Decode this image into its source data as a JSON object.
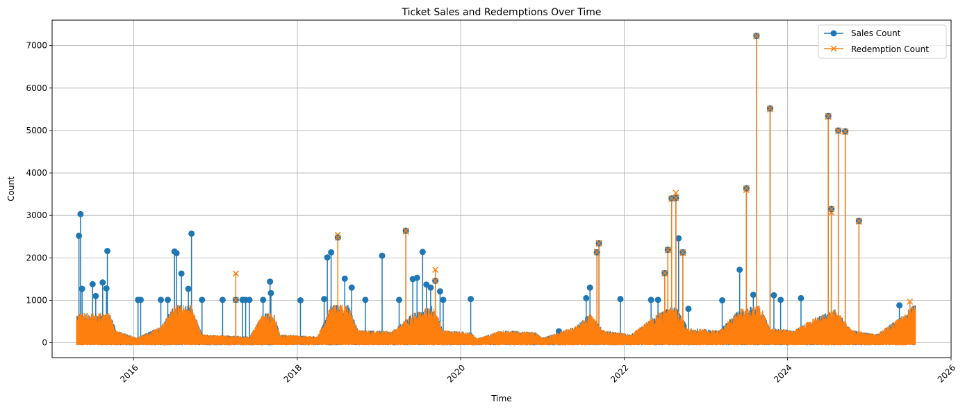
{
  "chart_data": {
    "type": "line",
    "title": "Ticket Sales and Redemptions Over Time",
    "xlabel": "Time",
    "ylabel": "Count",
    "x_axis_type": "date",
    "xlim": [
      "2015-01-01",
      "2026-01-01"
    ],
    "ylim": [
      -350,
      7600
    ],
    "xticks": [
      "2016",
      "2018",
      "2020",
      "2022",
      "2024",
      "2026"
    ],
    "yticks": [
      0,
      1000,
      2000,
      3000,
      4000,
      5000,
      6000,
      7000
    ],
    "grid": true,
    "legend": "top-right",
    "colors": {
      "sales": "#1f77b4",
      "redemption": "#ff7f0e"
    },
    "series": [
      {
        "name": "Sales Count",
        "marker": "circle",
        "spikes": [
          [
            "2015-05-01",
            2520
          ],
          [
            "2015-05-08",
            3030
          ],
          [
            "2015-05-15",
            1270
          ],
          [
            "2015-07-01",
            1380
          ],
          [
            "2015-07-15",
            1100
          ],
          [
            "2015-08-15",
            1420
          ],
          [
            "2015-09-01",
            1280
          ],
          [
            "2015-09-05",
            2160
          ],
          [
            "2016-01-20",
            1010
          ],
          [
            "2016-02-01",
            1010
          ],
          [
            "2016-05-01",
            1010
          ],
          [
            "2016-06-01",
            1010
          ],
          [
            "2016-07-01",
            2150
          ],
          [
            "2016-07-10",
            2110
          ],
          [
            "2016-08-01",
            1630
          ],
          [
            "2016-09-01",
            1270
          ],
          [
            "2016-09-15",
            2570
          ],
          [
            "2016-11-01",
            1010
          ],
          [
            "2017-02-01",
            1010
          ],
          [
            "2017-04-01",
            1010
          ],
          [
            "2017-05-01",
            1010
          ],
          [
            "2017-05-15",
            1010
          ],
          [
            "2017-06-01",
            1010
          ],
          [
            "2017-08-01",
            1010
          ],
          [
            "2017-09-01",
            1440
          ],
          [
            "2017-09-05",
            1170
          ],
          [
            "2018-01-15",
            1000
          ],
          [
            "2018-05-01",
            1030
          ],
          [
            "2018-05-15",
            2010
          ],
          [
            "2018-06-01",
            2130
          ],
          [
            "2018-07-01",
            2480
          ],
          [
            "2018-08-01",
            1510
          ],
          [
            "2018-09-01",
            1300
          ],
          [
            "2018-11-01",
            1010
          ],
          [
            "2019-01-15",
            2050
          ],
          [
            "2019-04-01",
            1010
          ],
          [
            "2019-05-01",
            2640
          ],
          [
            "2019-06-01",
            1500
          ],
          [
            "2019-06-20",
            1530
          ],
          [
            "2019-07-15",
            2140
          ],
          [
            "2019-08-01",
            1370
          ],
          [
            "2019-08-20",
            1300
          ],
          [
            "2019-09-10",
            1460
          ],
          [
            "2019-10-01",
            1210
          ],
          [
            "2019-10-15",
            1010
          ],
          [
            "2020-02-15",
            1030
          ],
          [
            "2021-03-15",
            270
          ],
          [
            "2021-07-15",
            1050
          ],
          [
            "2021-08-01",
            1300
          ],
          [
            "2021-09-01",
            2130
          ],
          [
            "2021-09-10",
            2340
          ],
          [
            "2021-12-15",
            1030
          ],
          [
            "2022-05-01",
            1010
          ],
          [
            "2022-06-01",
            1010
          ],
          [
            "2022-07-01",
            1640
          ],
          [
            "2022-07-15",
            2190
          ],
          [
            "2022-08-01",
            3400
          ],
          [
            "2022-08-20",
            3410
          ],
          [
            "2022-09-01",
            2460
          ],
          [
            "2022-09-20",
            2130
          ],
          [
            "2022-10-15",
            800
          ],
          [
            "2023-03-15",
            1000
          ],
          [
            "2023-06-01",
            1720
          ],
          [
            "2023-07-01",
            3640
          ],
          [
            "2023-08-01",
            1130
          ],
          [
            "2023-08-15",
            7230
          ],
          [
            "2023-10-15",
            5520
          ],
          [
            "2023-11-01",
            1120
          ],
          [
            "2023-12-01",
            1010
          ],
          [
            "2024-03-01",
            1050
          ],
          [
            "2024-07-01",
            5340
          ],
          [
            "2024-07-15",
            3150
          ],
          [
            "2024-08-15",
            5000
          ],
          [
            "2024-09-15",
            4980
          ],
          [
            "2024-11-15",
            2870
          ],
          [
            "2025-05-15",
            880
          ]
        ]
      },
      {
        "name": "Redemption Count",
        "marker": "x",
        "spikes": [
          [
            "2017-04-01",
            1630
          ],
          [
            "2018-07-01",
            2540
          ],
          [
            "2019-05-01",
            2620
          ],
          [
            "2019-09-10",
            1720
          ],
          [
            "2021-09-01",
            2150
          ],
          [
            "2021-09-10",
            2350
          ],
          [
            "2022-07-01",
            1630
          ],
          [
            "2022-07-15",
            2180
          ],
          [
            "2022-08-01",
            3390
          ],
          [
            "2022-08-20",
            3530
          ],
          [
            "2022-09-20",
            2110
          ],
          [
            "2023-07-01",
            3600
          ],
          [
            "2023-08-15",
            7220
          ],
          [
            "2023-10-15",
            5500
          ],
          [
            "2024-07-01",
            5320
          ],
          [
            "2024-07-15",
            3070
          ],
          [
            "2024-08-15",
            4980
          ],
          [
            "2024-09-15",
            4960
          ],
          [
            "2024-11-15",
            2850
          ],
          [
            "2025-07-01",
            970
          ]
        ]
      }
    ],
    "baseline_levels": [
      [
        "2015-04-15",
        700
      ],
      [
        "2015-09-15",
        700
      ],
      [
        "2015-10-15",
        300
      ],
      [
        "2016-01-15",
        120
      ],
      [
        "2016-05-01",
        400
      ],
      [
        "2016-07-01",
        900
      ],
      [
        "2016-09-15",
        900
      ],
      [
        "2016-11-01",
        200
      ],
      [
        "2017-06-01",
        150
      ],
      [
        "2017-08-01",
        700
      ],
      [
        "2017-09-20",
        700
      ],
      [
        "2017-10-15",
        200
      ],
      [
        "2018-04-01",
        150
      ],
      [
        "2018-06-01",
        900
      ],
      [
        "2018-08-15",
        900
      ],
      [
        "2018-10-01",
        300
      ],
      [
        "2019-03-01",
        280
      ],
      [
        "2019-06-01",
        700
      ],
      [
        "2019-09-01",
        900
      ],
      [
        "2019-10-15",
        300
      ],
      [
        "2020-02-15",
        250
      ],
      [
        "2020-03-15",
        100
      ],
      [
        "2020-07-01",
        300
      ],
      [
        "2020-12-01",
        250
      ],
      [
        "2021-01-01",
        120
      ],
      [
        "2021-06-01",
        400
      ],
      [
        "2021-08-01",
        700
      ],
      [
        "2021-10-01",
        300
      ],
      [
        "2022-02-01",
        200
      ],
      [
        "2022-06-01",
        700
      ],
      [
        "2022-08-15",
        900
      ],
      [
        "2022-10-15",
        350
      ],
      [
        "2023-03-01",
        300
      ],
      [
        "2023-06-01",
        800
      ],
      [
        "2023-09-01",
        900
      ],
      [
        "2023-10-15",
        350
      ],
      [
        "2024-02-01",
        300
      ],
      [
        "2024-05-01",
        600
      ],
      [
        "2024-08-01",
        800
      ],
      [
        "2024-10-15",
        300
      ],
      [
        "2025-02-01",
        200
      ],
      [
        "2025-05-15",
        600
      ],
      [
        "2025-07-20",
        900
      ]
    ]
  }
}
